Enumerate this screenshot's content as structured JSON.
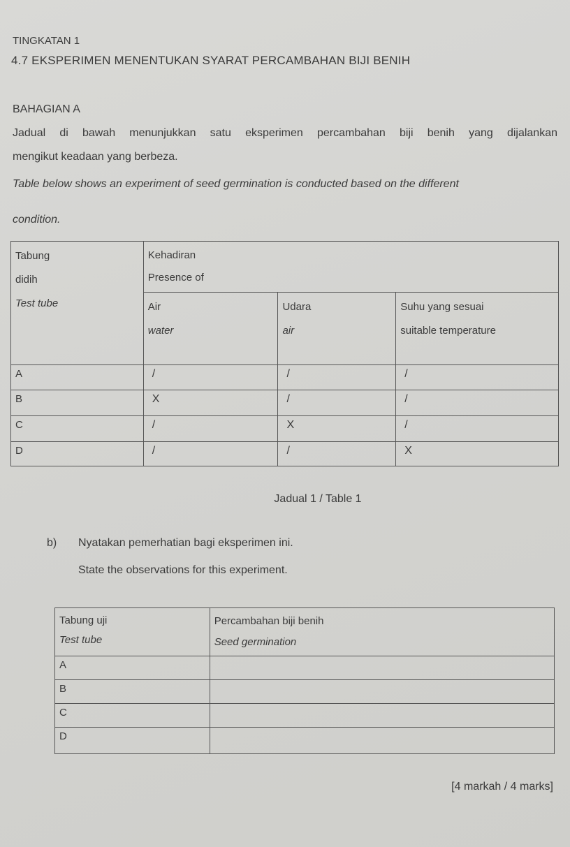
{
  "header": {
    "level": "TINGKATAN 1",
    "title": "4.7 EKSPERIMEN MENENTUKAN SYARAT PERCAMBAHAN BIJI BENIH"
  },
  "section": "BAHAGIAN A",
  "intro_ms": [
    "Jadual di bawah menunjukkan satu eksperimen percambahan biji benih yang dijalankan",
    "mengikut keadaan yang berbeza."
  ],
  "intro_en": [
    "Table below shows an experiment of seed germination is conducted based on the different",
    "condition."
  ],
  "table1": {
    "col_tube": [
      "Tabung",
      "didih",
      "Test tube"
    ],
    "presence": [
      "Kehadiran",
      "Presence of"
    ],
    "factors": [
      {
        "ms": "Air",
        "en": "water"
      },
      {
        "ms": "Udara",
        "en": "air"
      },
      {
        "ms": "Suhu yang sesuai",
        "en": "suitable temperature"
      }
    ],
    "rows": [
      {
        "tube": "A",
        "values": [
          "/",
          "/",
          "/"
        ]
      },
      {
        "tube": "B",
        "values": [
          "X",
          "/",
          "/"
        ]
      },
      {
        "tube": "C",
        "values": [
          "/",
          "X",
          "/"
        ]
      },
      {
        "tube": "D",
        "values": [
          "/",
          "/",
          "X"
        ]
      }
    ],
    "caption": "Jadual 1 / Table 1"
  },
  "question": {
    "label": "b)",
    "text_ms": "Nyatakan pemerhatian bagi eksperimen ini.",
    "text_en": "State the observations for this experiment."
  },
  "table2": {
    "col_tube": [
      "Tabung uji",
      "Test tube"
    ],
    "col_result": [
      "Percambahan biji benih",
      "Seed germination"
    ],
    "rows": [
      {
        "tube": "A",
        "answer": ""
      },
      {
        "tube": "B",
        "answer": ""
      },
      {
        "tube": "C",
        "answer": ""
      },
      {
        "tube": "D",
        "answer": ""
      }
    ]
  },
  "marks": "[4 markah / 4 marks]"
}
